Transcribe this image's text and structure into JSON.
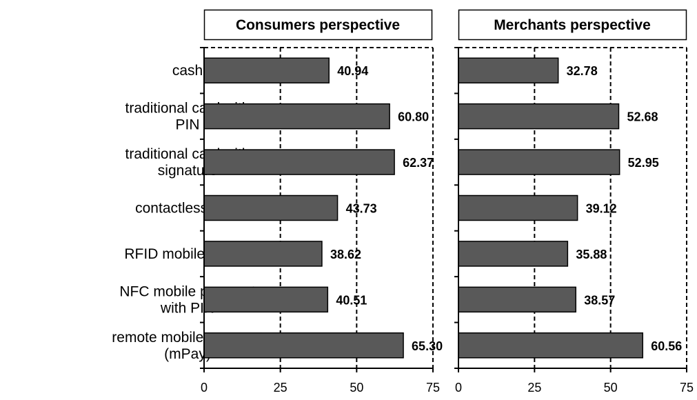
{
  "chart_data": {
    "type": "bar",
    "orientation": "horizontal",
    "categories": [
      [
        "cash"
      ],
      [
        "traditional card with",
        "PIN"
      ],
      [
        "traditional card with",
        "signature"
      ],
      [
        "contactless card"
      ],
      [
        "RFID mobile sticker"
      ],
      [
        "NFC mobile payment",
        "with PIN"
      ],
      [
        "remote mobile payment",
        "(mPay)"
      ]
    ],
    "xlim": [
      0,
      75
    ],
    "xticks": [
      0,
      25,
      50,
      75
    ],
    "grid": "vertical dashed",
    "bar_color": "#595959",
    "panels": [
      {
        "title": "Consumers perspective",
        "values": [
          40.94,
          60.8,
          62.37,
          43.73,
          38.62,
          40.51,
          65.3
        ],
        "value_labels": [
          "40.94",
          "60.80",
          "62.37",
          "43.73",
          "38.62",
          "40.51",
          "65.30"
        ]
      },
      {
        "title": "Merchants  perspective",
        "values": [
          32.78,
          52.68,
          52.95,
          39.12,
          35.88,
          38.57,
          60.56
        ],
        "value_labels": [
          "32.78",
          "52.68",
          "52.95",
          "39.12",
          "35.88",
          "38.57",
          "60.56"
        ]
      }
    ]
  }
}
